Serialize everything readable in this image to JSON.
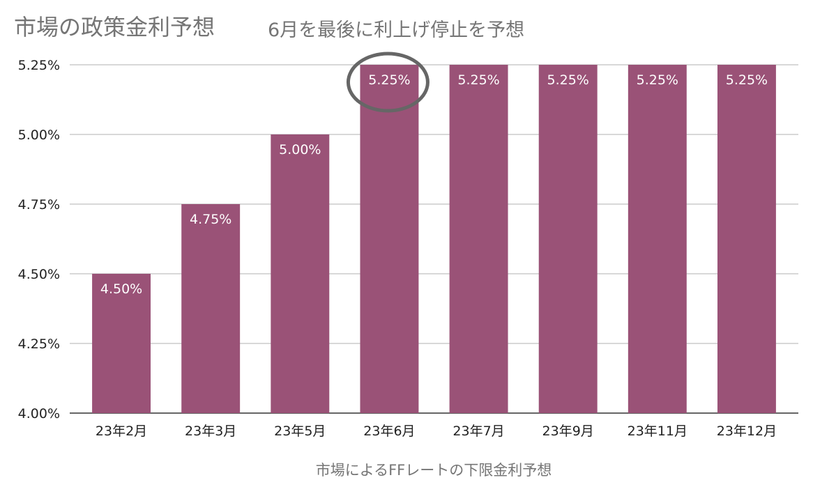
{
  "chart_data": {
    "type": "bar",
    "title": "市場の政策金利予想",
    "subtitle": "6月を最後に利上げ停止を予想",
    "xlabel": "市場によるFFレートの下限金利予想",
    "ylabel": "",
    "categories": [
      "23年2月",
      "23年3月",
      "23年5月",
      "23年6月",
      "23年7月",
      "23年9月",
      "23年11月",
      "23年12月"
    ],
    "values": [
      4.5,
      4.75,
      5.0,
      5.25,
      5.25,
      5.25,
      5.25,
      5.25
    ],
    "data_labels": [
      "4.50%",
      "4.75%",
      "5.00%",
      "5.25%",
      "5.25%",
      "5.25%",
      "5.25%",
      "5.25%"
    ],
    "ylim": [
      4.0,
      5.25
    ],
    "yticks": [
      4.0,
      4.25,
      4.5,
      4.75,
      5.0,
      5.25
    ],
    "ytick_labels": [
      "4.00%",
      "4.25%",
      "4.50%",
      "4.75%",
      "5.00%",
      "5.25%"
    ],
    "grid": true,
    "legend": "none",
    "bar_color": "#9a5277",
    "highlighted_category": "23年6月"
  }
}
